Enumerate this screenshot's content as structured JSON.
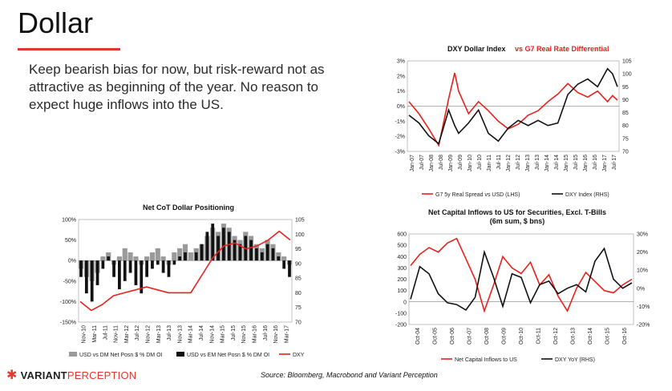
{
  "slide": {
    "title": "Dollar",
    "body": "Keep bearish bias for now, but risk-reward not as attractive as beginning of the year. No reason to expect huge inflows into the US.",
    "logo_part1": "VARIANT",
    "logo_part2": "PERCEPTION",
    "logo_icon": "asterisk-icon",
    "source": "Source: Bloomberg, Macrobond and Variant Perception"
  },
  "colors": {
    "accent": "#e03a2f",
    "red_series": "#e8211d",
    "black_series": "#111111",
    "grey_bar": "#9a9a9a"
  },
  "chart_data": [
    {
      "id": "dxy",
      "type": "line",
      "title_part1": "DXY Dollar Index",
      "title_part2": "vs G7 Real Rate Differential",
      "x_ticks": [
        "Jan-07",
        "Jul-07",
        "Jan-08",
        "Jul-08",
        "Jan-09",
        "Jul-09",
        "Jan-10",
        "Jul-10",
        "Jan-11",
        "Jul-11",
        "Jan-12",
        "Jul-12",
        "Jan-13",
        "Jul-13",
        "Jan-14",
        "Jul-14",
        "Jan-15",
        "Jul-15",
        "Jan-16",
        "Jul-16",
        "Jan-17",
        "Jul-17"
      ],
      "y_left_ticks": [
        "3%",
        "2%",
        "1%",
        "0%",
        "-1%",
        "-2%",
        "-3%"
      ],
      "y_right_ticks": [
        "105",
        "100",
        "95",
        "90",
        "85",
        "80",
        "75",
        "70"
      ],
      "ylim_left": [
        -3,
        3
      ],
      "ylim_right": [
        70,
        105
      ],
      "series": [
        {
          "name": "G7 5y Real Spread vs USD (LHS)",
          "color": "#e8211d",
          "axis": "left",
          "x": [
            2007,
            2007.5,
            2008,
            2008.5,
            2009,
            2009.3,
            2009.5,
            2010,
            2010.5,
            2011,
            2011.5,
            2012,
            2012.5,
            2013,
            2013.5,
            2014,
            2014.5,
            2015,
            2015.5,
            2016,
            2016.5,
            2017,
            2017.25,
            2017.5
          ],
          "values": [
            0.3,
            -0.5,
            -1.5,
            -2.6,
            0.5,
            2.2,
            1.0,
            -0.5,
            0.3,
            -0.3,
            -1.0,
            -1.5,
            -1.2,
            -0.6,
            -0.3,
            0.3,
            0.8,
            1.5,
            0.9,
            0.6,
            1.0,
            0.3,
            0.7,
            0.4
          ]
        },
        {
          "name": "DXY Index (RHS)",
          "color": "#111111",
          "axis": "right",
          "x": [
            2007,
            2007.5,
            2008,
            2008.5,
            2009,
            2009.3,
            2009.5,
            2010,
            2010.5,
            2011,
            2011.5,
            2012,
            2012.5,
            2013,
            2013.5,
            2014,
            2014.5,
            2015,
            2015.5,
            2016,
            2016.5,
            2017,
            2017.25,
            2017.5
          ],
          "values": [
            84,
            81,
            76,
            73,
            86,
            80,
            77,
            81,
            86,
            77,
            74,
            79,
            82,
            80,
            82,
            80,
            81,
            92,
            96,
            98,
            95,
            102,
            100,
            95
          ]
        }
      ]
    },
    {
      "id": "cot",
      "type": "bar",
      "title": "Net CoT Dollar Positioning",
      "x_ticks": [
        "Nov-10",
        "Mar-11",
        "Jul-11",
        "Nov-11",
        "Mar-12",
        "Jul-12",
        "Nov-12",
        "Mar-13",
        "Jul-13",
        "Nov-13",
        "Mar-14",
        "Jul-14",
        "Nov-14",
        "Mar-15",
        "Jul-15",
        "Nov-15",
        "Mar-16",
        "Jul-16",
        "Nov-16",
        "Mar-17"
      ],
      "y_left_ticks": [
        "100%",
        "50%",
        "0%",
        "-50%",
        "-100%",
        "-150%"
      ],
      "y_right_ticks": [
        "105",
        "100",
        "95",
        "90",
        "85",
        "80",
        "75",
        "70"
      ],
      "ylim_left": [
        -150,
        100
      ],
      "ylim_right": [
        70,
        105
      ],
      "series": [
        {
          "name": "USD vs DM Net Posn $ % DM OI",
          "color": "#9a9a9a",
          "axis": "left",
          "x": [
            0,
            2,
            4,
            6,
            8,
            10,
            12,
            14,
            16,
            18,
            20,
            22,
            24,
            26,
            28,
            30,
            32,
            34,
            36,
            38,
            40,
            42,
            44,
            46,
            48,
            50,
            52,
            54,
            56,
            58,
            60,
            62,
            64,
            66,
            68,
            70,
            72,
            74,
            76
          ],
          "values": [
            -20,
            -40,
            -50,
            -30,
            10,
            20,
            -10,
            10,
            30,
            20,
            10,
            -10,
            10,
            20,
            30,
            10,
            -10,
            20,
            30,
            40,
            20,
            30,
            40,
            60,
            80,
            70,
            90,
            80,
            60,
            50,
            70,
            60,
            40,
            30,
            50,
            40,
            20,
            10,
            -10
          ]
        },
        {
          "name": "USD vs EM Net Posn $ % DM OI",
          "color": "#111111",
          "axis": "left",
          "x": [
            0,
            2,
            4,
            6,
            8,
            10,
            12,
            14,
            16,
            18,
            20,
            22,
            24,
            26,
            28,
            30,
            32,
            34,
            36,
            38,
            40,
            42,
            44,
            46,
            48,
            50,
            52,
            54,
            56,
            58,
            60,
            62,
            64,
            66,
            68,
            70,
            72,
            74,
            76
          ],
          "values": [
            -40,
            -80,
            -100,
            -60,
            -20,
            10,
            -40,
            -70,
            -50,
            -30,
            -60,
            -80,
            -40,
            -20,
            -10,
            -30,
            -40,
            -10,
            10,
            20,
            0,
            20,
            40,
            70,
            90,
            60,
            80,
            70,
            50,
            40,
            60,
            50,
            30,
            20,
            40,
            30,
            10,
            -20,
            -40
          ]
        },
        {
          "name": "DXY",
          "color": "#e8211d",
          "axis": "right",
          "x": [
            0,
            4,
            8,
            12,
            16,
            20,
            24,
            28,
            32,
            36,
            40,
            44,
            48,
            52,
            56,
            60,
            64,
            68,
            72,
            76
          ],
          "values": [
            77,
            74,
            76,
            79,
            80,
            81,
            82,
            81,
            80,
            80,
            80,
            86,
            92,
            96,
            97,
            95,
            96,
            98,
            101,
            98
          ]
        }
      ]
    },
    {
      "id": "inflows",
      "type": "line",
      "title_line1": "Net Capital Inflows to US for Securities, Excl. T-Bills",
      "title_line2": "(6m sum, $ bns)",
      "x_ticks": [
        "Oct-04",
        "Oct-05",
        "Oct-06",
        "Oct-07",
        "Oct-08",
        "Oct-09",
        "Oct-10",
        "Oct-11",
        "Oct-12",
        "Oct-13",
        "Oct-14",
        "Oct-15",
        "Oct-16"
      ],
      "y_left_ticks": [
        "600",
        "500",
        "400",
        "300",
        "200",
        "100",
        "0",
        "-100",
        "-200"
      ],
      "y_right_ticks": [
        "30%",
        "20%",
        "10%",
        "0%",
        "-10%",
        "-20%"
      ],
      "ylim_left": [
        -200,
        600
      ],
      "ylim_right": [
        -20,
        30
      ],
      "series": [
        {
          "name": "Net Capital Inflows to US",
          "color": "#e8211d",
          "axis": "left",
          "x": [
            2004.75,
            2005.25,
            2005.75,
            2006.25,
            2006.75,
            2007.25,
            2007.75,
            2008.25,
            2008.75,
            2009.25,
            2009.75,
            2010.25,
            2010.75,
            2011.25,
            2011.75,
            2012.25,
            2012.75,
            2013.25,
            2013.75,
            2014.25,
            2014.75,
            2015.25,
            2015.75,
            2016.25,
            2016.75
          ],
          "values": [
            320,
            420,
            480,
            440,
            520,
            560,
            380,
            200,
            -80,
            150,
            400,
            300,
            250,
            350,
            150,
            240,
            50,
            -80,
            120,
            260,
            180,
            100,
            80,
            150,
            200
          ]
        },
        {
          "name": "DXY YoY (RHS)",
          "color": "#111111",
          "axis": "right",
          "x": [
            2004.75,
            2005.25,
            2005.75,
            2006.25,
            2006.75,
            2007.25,
            2007.75,
            2008.25,
            2008.75,
            2009.25,
            2009.75,
            2010.25,
            2010.75,
            2011.25,
            2011.75,
            2012.25,
            2012.75,
            2013.25,
            2013.75,
            2014.25,
            2014.75,
            2015.25,
            2015.75,
            2016.25,
            2016.75
          ],
          "values": [
            -6,
            12,
            8,
            -3,
            -8,
            -9,
            -12,
            -5,
            20,
            6,
            -10,
            8,
            6,
            -8,
            2,
            4,
            -3,
            0,
            2,
            -2,
            15,
            22,
            5,
            0,
            3
          ]
        }
      ]
    }
  ]
}
